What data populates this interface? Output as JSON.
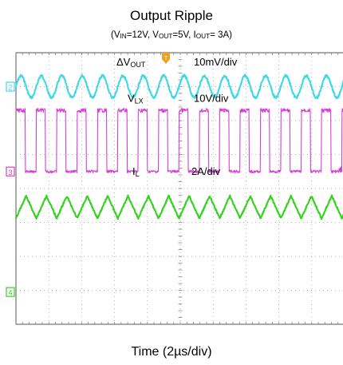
{
  "chart_data": {
    "type": "line",
    "title": "Output Ripple",
    "subtitle": {
      "vin_label": "V",
      "vin_sub": "IN",
      "vin_value": "=12V, ",
      "vout_label": "V",
      "vout_sub": "OUT",
      "vout_value": "=5V, ",
      "iout_label": "I",
      "iout_sub": "OUT",
      "iout_value": "= 3A)"
    },
    "xlabel": "Time (2µs/div)",
    "x_divisions": 10,
    "y_divisions": 8,
    "grid": true,
    "channels": [
      {
        "marker": "2",
        "label": "ΔV",
        "label_sub": "OUT",
        "scale": "10mV/div",
        "color": "#3fd9e6",
        "shape": "sine",
        "period_div": 0.62,
        "amplitude_div": 0.32,
        "center_div": 1.0
      },
      {
        "marker": "3",
        "label": "V",
        "label_sub": "LX",
        "scale": "10V/div",
        "color": "#d63fd6",
        "shape": "pulse",
        "period_div": 0.62,
        "high_div": 1.8,
        "center_div": 3.5,
        "duty": 0.45
      },
      {
        "marker": "",
        "label": "I",
        "label_sub": "L",
        "scale": "2A/div",
        "color": "#33d21e",
        "shape": "triangle",
        "period_div": 0.62,
        "amplitude_div": 0.33,
        "center_div": 4.55
      },
      {
        "marker": "4",
        "label": "",
        "label_sub": "",
        "scale": "",
        "color": "#33d21e",
        "shape": "none",
        "center_div": 7.05
      }
    ]
  }
}
